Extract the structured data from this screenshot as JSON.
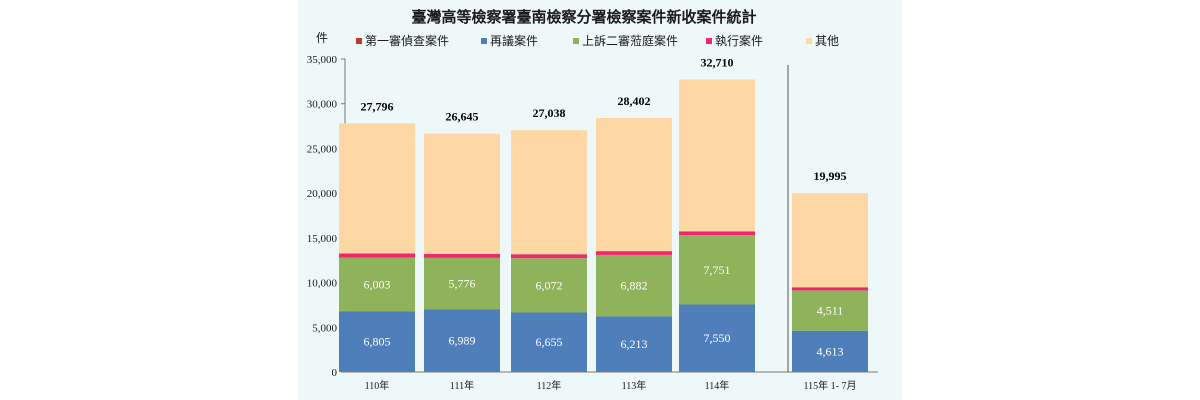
{
  "chart_data": {
    "type": "bar",
    "stacked": true,
    "title": "臺灣高等檢察署臺南檢察分署檢察案件新收案件統計",
    "ylabel": "件",
    "ylim": [
      0,
      35000
    ],
    "yticks": [
      "0",
      "5,000",
      "10,000",
      "15,000",
      "20,000",
      "25,000",
      "30,000",
      "35,000"
    ],
    "grid": false,
    "legend_position": "top",
    "categories": [
      "110年",
      "111年",
      "112年",
      "113年",
      "114年",
      "115年 1- 7月"
    ],
    "series": [
      {
        "name": "第一審偵查案件",
        "color": "#c0392b",
        "values": [
          0,
          0,
          0,
          0,
          0,
          0
        ],
        "labels": [
          "",
          "",
          "",
          "",
          "",
          ""
        ]
      },
      {
        "name": "再議案件",
        "color": "#4f7fba",
        "values": [
          6805,
          6989,
          6655,
          6213,
          7550,
          4613
        ],
        "labels": [
          "6,805",
          "6,989",
          "6,655",
          "6,213",
          "7,550",
          "4,613"
        ]
      },
      {
        "name": "上訴二審蒞庭案件",
        "color": "#8fb35a",
        "values": [
          6003,
          5776,
          6072,
          6882,
          7751,
          4511
        ],
        "labels": [
          "6,003",
          "5,776",
          "6,072",
          "6,882",
          "7,751",
          "4,511"
        ]
      },
      {
        "name": "執行案件",
        "color": "#f0266e",
        "values": [
          450,
          430,
          440,
          420,
          430,
          350
        ],
        "labels": [
          "",
          "",
          "",
          "",
          "",
          ""
        ]
      },
      {
        "name": "其他",
        "color": "#fdd8a5",
        "values": [
          14538,
          13450,
          13871,
          14887,
          16979,
          10521
        ],
        "labels": [
          "",
          "",
          "",
          "",
          "",
          ""
        ]
      }
    ],
    "totals": [
      "27,796",
      "26,645",
      "27,038",
      "28,402",
      "32,710",
      "19,995"
    ],
    "total_values": [
      27796,
      26645,
      27038,
      28402,
      32710,
      19995
    ]
  }
}
